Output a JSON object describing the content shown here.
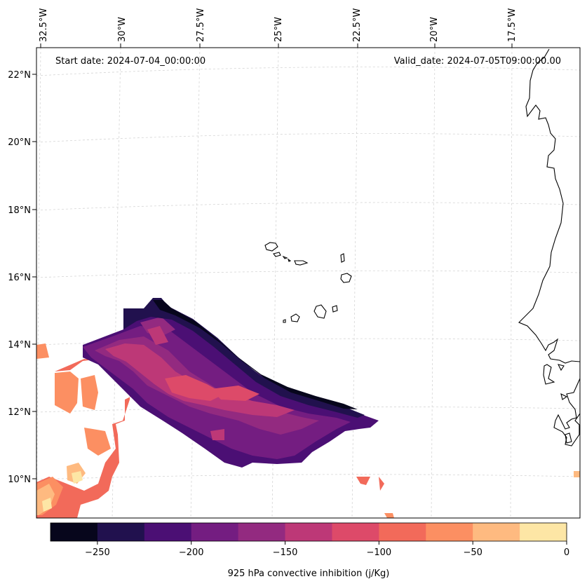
{
  "map": {
    "start_date": "Start date: 2024-07-04_00:00:00",
    "valid_date": "Valid_date: 2024-07-05T09:00:00.00",
    "variable_label": "925 hPa convective inhibition (j/Kg)"
  },
  "lon_labels": [
    "32.5°W",
    "30°W",
    "27.5°W",
    "25°W",
    "22.5°W",
    "20°W",
    "17.5°W"
  ],
  "lat_labels": [
    "22°N",
    "20°N",
    "18°N",
    "16°N",
    "14°N",
    "12°N",
    "10°N"
  ],
  "colorbar": {
    "tick_labels": [
      "−250",
      "−200",
      "−150",
      "−100",
      "−50",
      "0"
    ],
    "tick_values": [
      -250,
      -200,
      -150,
      -100,
      -50,
      0
    ],
    "range": [
      -275,
      0
    ],
    "levels": [
      -275,
      -250,
      -225,
      -200,
      -175,
      -150,
      -125,
      -100,
      -75,
      -50,
      -25,
      0
    ],
    "colors": [
      "#07061c",
      "#21114e",
      "#4b0f74",
      "#741d81",
      "#932a80",
      "#bd3877",
      "#dd4a69",
      "#f26a5a",
      "#fc8f62",
      "#feba80",
      "#fde6a5"
    ]
  },
  "colors": {
    "coastline": "#000000",
    "grid": "#d0d0d0",
    "frame": "#000000"
  }
}
